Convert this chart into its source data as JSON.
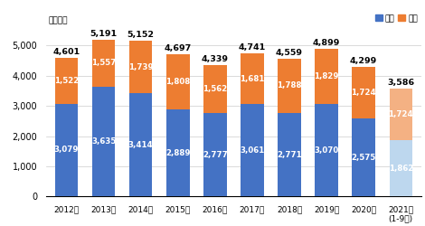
{
  "years": [
    "2012年",
    "2013年",
    "2014年",
    "2015年",
    "2016年",
    "2017年",
    "2018年",
    "2019年",
    "2020年",
    "2021年\n(1-9月)"
  ],
  "domestic": [
    3079,
    3635,
    3414,
    2889,
    2777,
    3061,
    2771,
    3070,
    2575,
    1862
  ],
  "export": [
    1522,
    1557,
    1739,
    1808,
    1562,
    1681,
    1788,
    1829,
    1724,
    1724
  ],
  "totals": [
    4601,
    5191,
    5152,
    4697,
    4339,
    4741,
    4559,
    4899,
    4299,
    3586
  ],
  "domestic_colors": [
    "#4472C4",
    "#4472C4",
    "#4472C4",
    "#4472C4",
    "#4472C4",
    "#4472C4",
    "#4472C4",
    "#4472C4",
    "#4472C4",
    "#BDD7EE"
  ],
  "export_colors": [
    "#ED7D31",
    "#ED7D31",
    "#ED7D31",
    "#ED7D31",
    "#ED7D31",
    "#ED7D31",
    "#ED7D31",
    "#ED7D31",
    "#ED7D31",
    "#F4B183"
  ],
  "ylabel": "（億円）",
  "ylim": [
    0,
    5600
  ],
  "yticks": [
    0,
    1000,
    2000,
    3000,
    4000,
    5000
  ],
  "legend_domestic": "国内",
  "legend_export": "輸出",
  "bar_width": 0.62,
  "label_fontsize": 6.2,
  "tick_fontsize": 7.0,
  "total_fontsize": 6.8
}
